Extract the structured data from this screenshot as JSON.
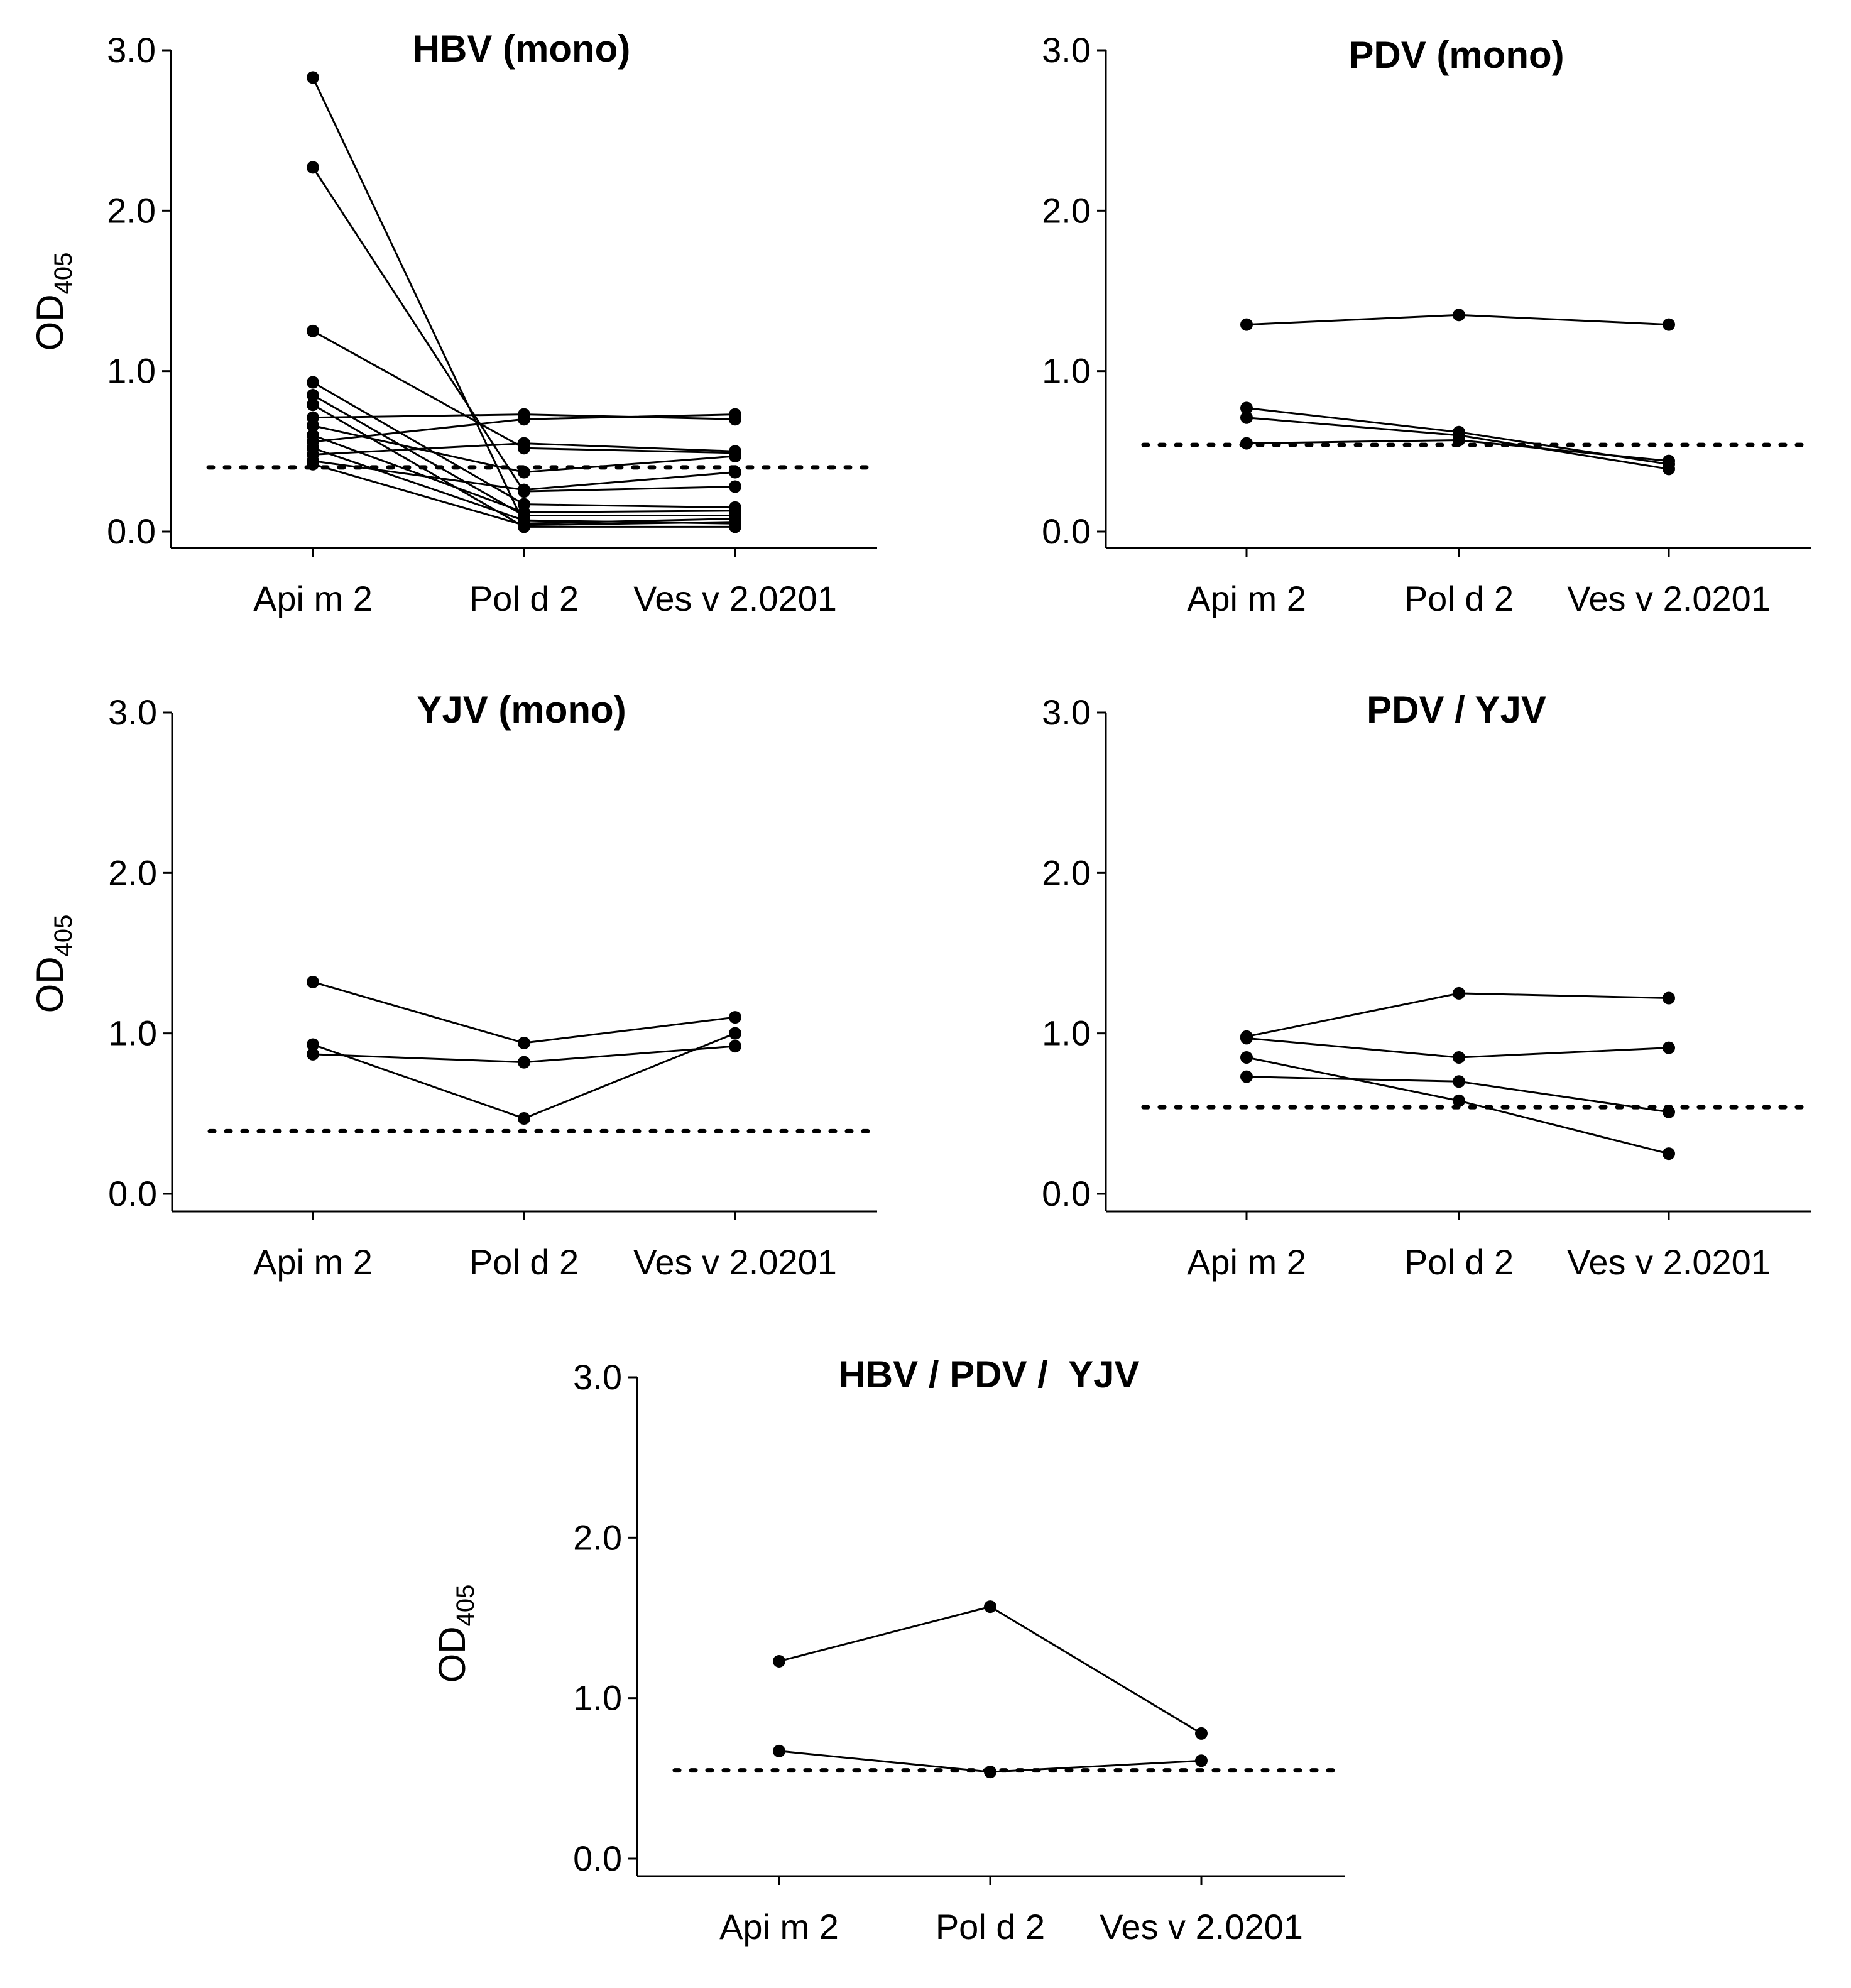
{
  "chart_data": [
    {
      "type": "line",
      "title": "HBV (mono)",
      "ylabel": "OD",
      "ylabel_subscript": "405",
      "categories": [
        "Api m 2",
        "Pol d 2",
        "Ves v 2.0201"
      ],
      "yticks": [
        "0.0",
        "1.0",
        "2.0",
        "3.0"
      ],
      "ylim": [
        -0.1,
        3.0
      ],
      "cutoff": 0.4,
      "series": [
        {
          "values": [
            2.83,
            0.05,
            0.08
          ]
        },
        {
          "values": [
            2.27,
            0.25,
            0.28
          ]
        },
        {
          "values": [
            1.25,
            0.52,
            0.49
          ]
        },
        {
          "values": [
            0.93,
            0.17,
            0.15
          ]
        },
        {
          "values": [
            0.85,
            0.1,
            0.1
          ]
        },
        {
          "values": [
            0.79,
            0.03,
            0.03
          ]
        },
        {
          "values": [
            0.71,
            0.73,
            0.7
          ]
        },
        {
          "values": [
            0.66,
            0.37,
            0.47
          ]
        },
        {
          "values": [
            0.6,
            0.12,
            0.13
          ]
        },
        {
          "values": [
            0.56,
            0.7,
            0.73
          ]
        },
        {
          "values": [
            0.52,
            0.07,
            0.05
          ]
        },
        {
          "values": [
            0.48,
            0.55,
            0.5
          ]
        },
        {
          "values": [
            0.44,
            0.26,
            0.37
          ]
        },
        {
          "values": [
            0.42,
            0.04,
            0.06
          ]
        }
      ]
    },
    {
      "type": "line",
      "title": "PDV (mono)",
      "categories": [
        "Api m 2",
        "Pol d 2",
        "Ves v 2.0201"
      ],
      "yticks": [
        "0.0",
        "1.0",
        "2.0",
        "3.0"
      ],
      "ylim": [
        -0.1,
        3.0
      ],
      "cutoff": 0.54,
      "series": [
        {
          "values": [
            1.29,
            1.35,
            1.29
          ]
        },
        {
          "values": [
            0.77,
            0.62,
            0.42
          ]
        },
        {
          "values": [
            0.71,
            0.6,
            0.39
          ]
        },
        {
          "values": [
            0.55,
            0.57,
            0.44
          ]
        }
      ]
    },
    {
      "type": "line",
      "title": "YJV (mono)",
      "ylabel": "OD",
      "ylabel_subscript": "405",
      "categories": [
        "Api m 2",
        "Pol d 2",
        "Ves v 2.0201"
      ],
      "yticks": [
        "0.0",
        "1.0",
        "2.0",
        "3.0"
      ],
      "ylim": [
        -0.1,
        3.0
      ],
      "cutoff": 0.39,
      "series": [
        {
          "values": [
            1.32,
            0.94,
            1.1
          ]
        },
        {
          "values": [
            0.93,
            0.47,
            1.0
          ]
        },
        {
          "values": [
            0.87,
            0.82,
            0.92
          ]
        }
      ]
    },
    {
      "type": "line",
      "title": "PDV / YJV",
      "categories": [
        "Api m 2",
        "Pol d 2",
        "Ves v 2.0201"
      ],
      "yticks": [
        "0.0",
        "1.0",
        "2.0",
        "3.0"
      ],
      "ylim": [
        -0.1,
        3.0
      ],
      "cutoff": 0.54,
      "series": [
        {
          "values": [
            0.98,
            1.25,
            1.22
          ]
        },
        {
          "values": [
            0.97,
            0.85,
            0.91
          ]
        },
        {
          "values": [
            0.85,
            0.58,
            0.25
          ]
        },
        {
          "values": [
            0.73,
            0.7,
            0.51
          ]
        }
      ]
    },
    {
      "type": "line",
      "title": "HBV / PDV /  YJV",
      "ylabel": "OD",
      "ylabel_subscript": "405",
      "categories": [
        "Api m 2",
        "Pol d 2",
        "Ves v 2.0201"
      ],
      "yticks": [
        "0.0",
        "1.0",
        "2.0",
        "3.0"
      ],
      "ylim": [
        -0.1,
        3.0
      ],
      "cutoff": 0.55,
      "series": [
        {
          "values": [
            1.23,
            1.57,
            0.78
          ]
        },
        {
          "values": [
            0.67,
            0.54,
            0.61
          ]
        }
      ]
    }
  ]
}
